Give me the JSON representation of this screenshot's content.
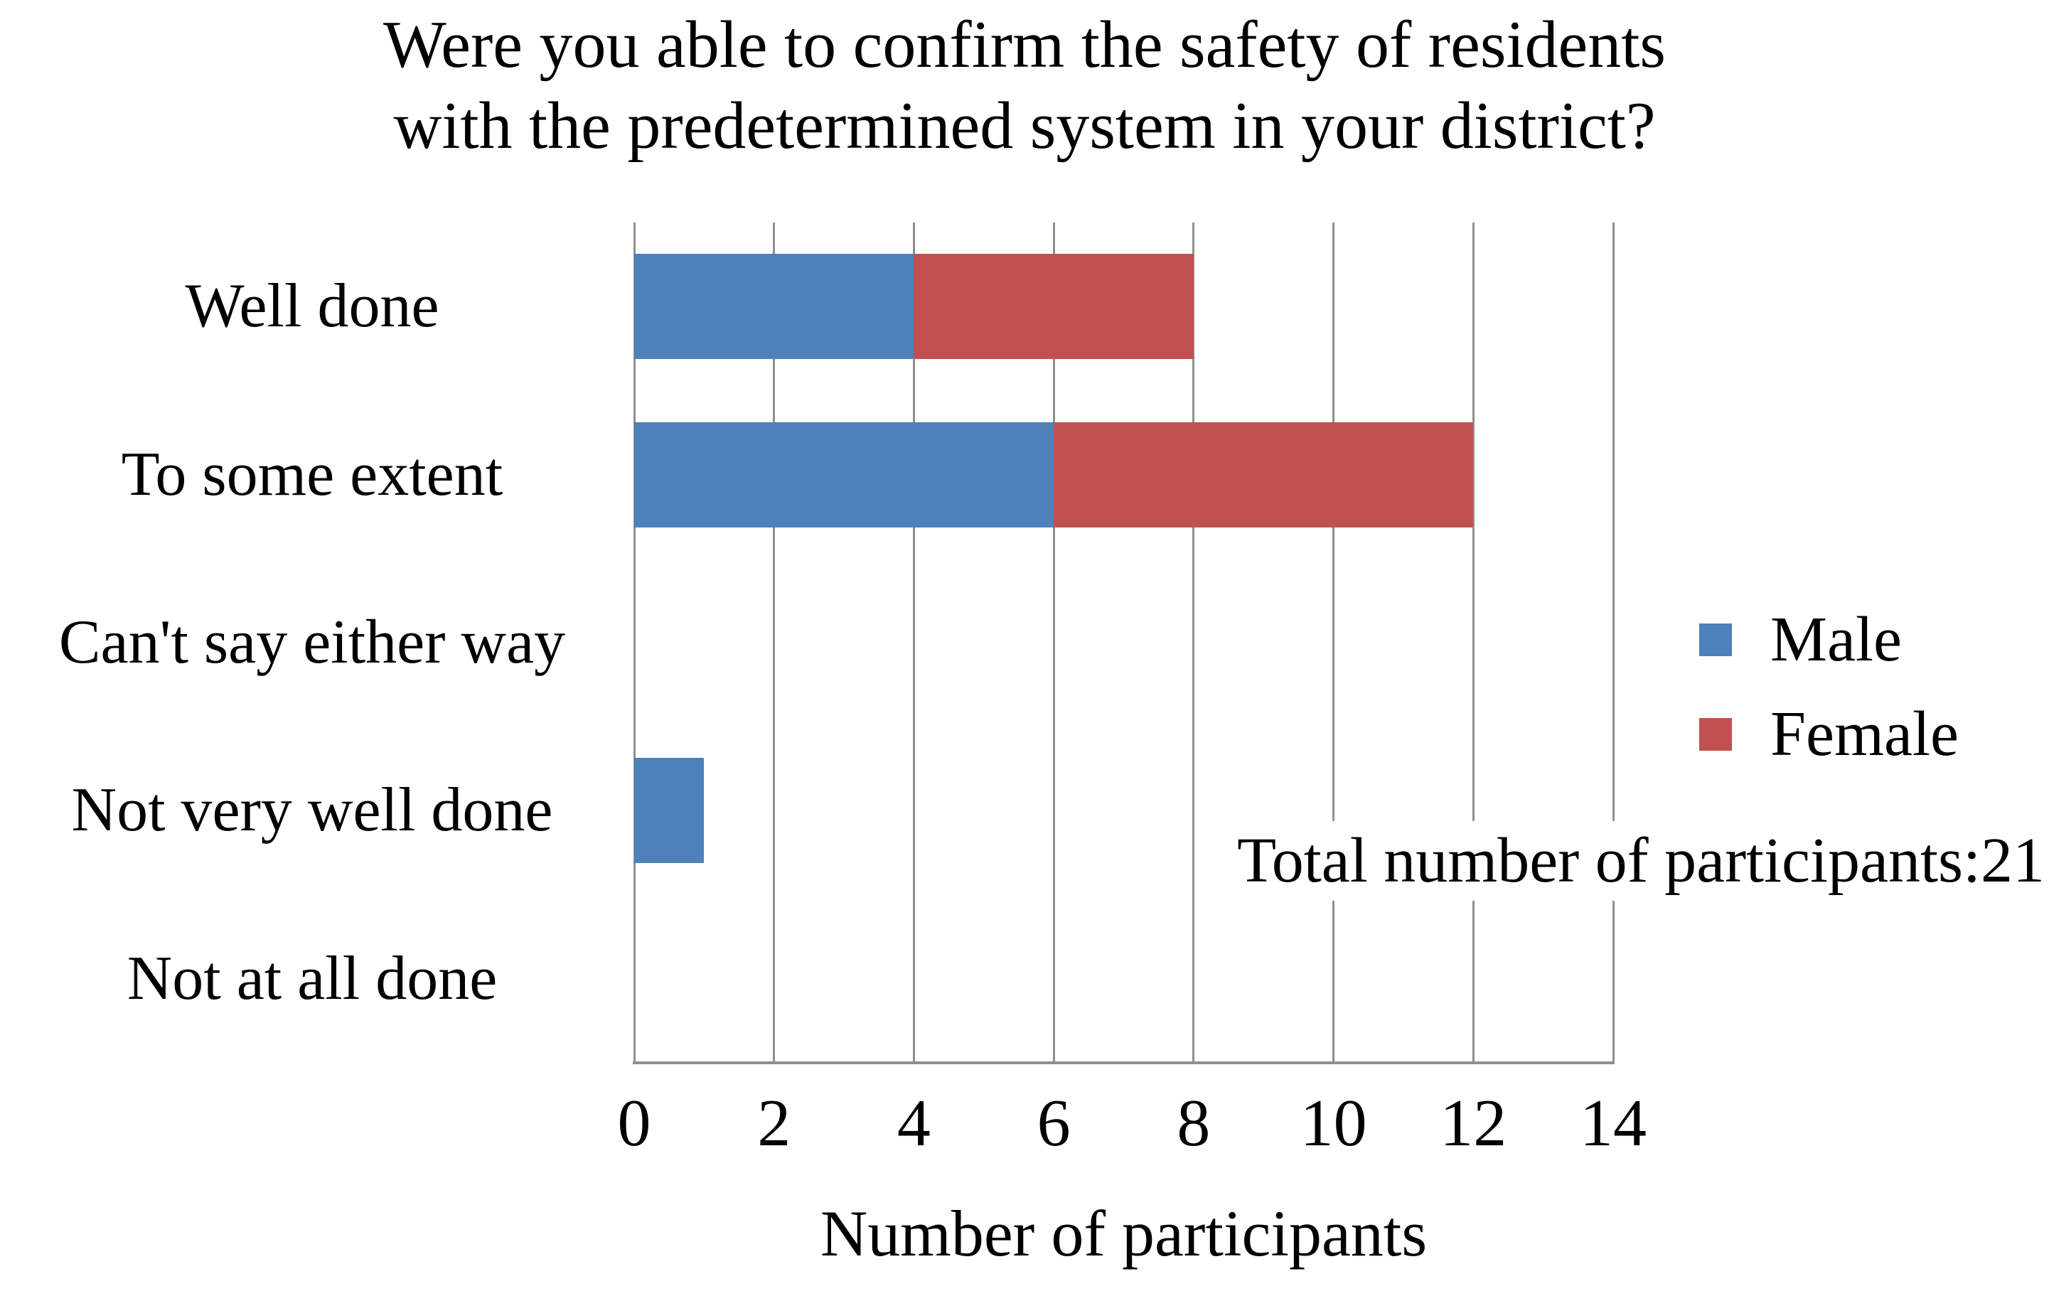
{
  "figure": {
    "background": "#ffffff",
    "text_color": "#000000"
  },
  "chart_data": {
    "type": "bar",
    "orientation": "horizontal",
    "stacked": true,
    "title_lines": [
      "Were you able to confirm the safety of residents",
      "with the predetermined system in your district?"
    ],
    "categories": [
      "Well done",
      "To some extent",
      "Can't say either way",
      "Not very well done",
      "Not at all done"
    ],
    "series": [
      {
        "name": "Male",
        "color": "#4E81BC",
        "values": [
          4,
          6,
          0,
          1,
          0
        ]
      },
      {
        "name": "Female",
        "color": "#C05150",
        "values": [
          4,
          6,
          0,
          0,
          0
        ]
      }
    ],
    "category_totals": [
      8,
      12,
      0,
      1,
      0
    ],
    "xlabel": "Number of participants",
    "xlim": [
      0,
      14
    ],
    "xticks": [
      0,
      2,
      4,
      6,
      8,
      10,
      12,
      14
    ],
    "grid": true,
    "gridline_color": "#8f8f8f",
    "axis_line_color": "#8f8f8f",
    "legend_position": "right-middle",
    "legend_entries": [
      "Male",
      "Female"
    ],
    "annotation": "Total number of participants:21"
  }
}
